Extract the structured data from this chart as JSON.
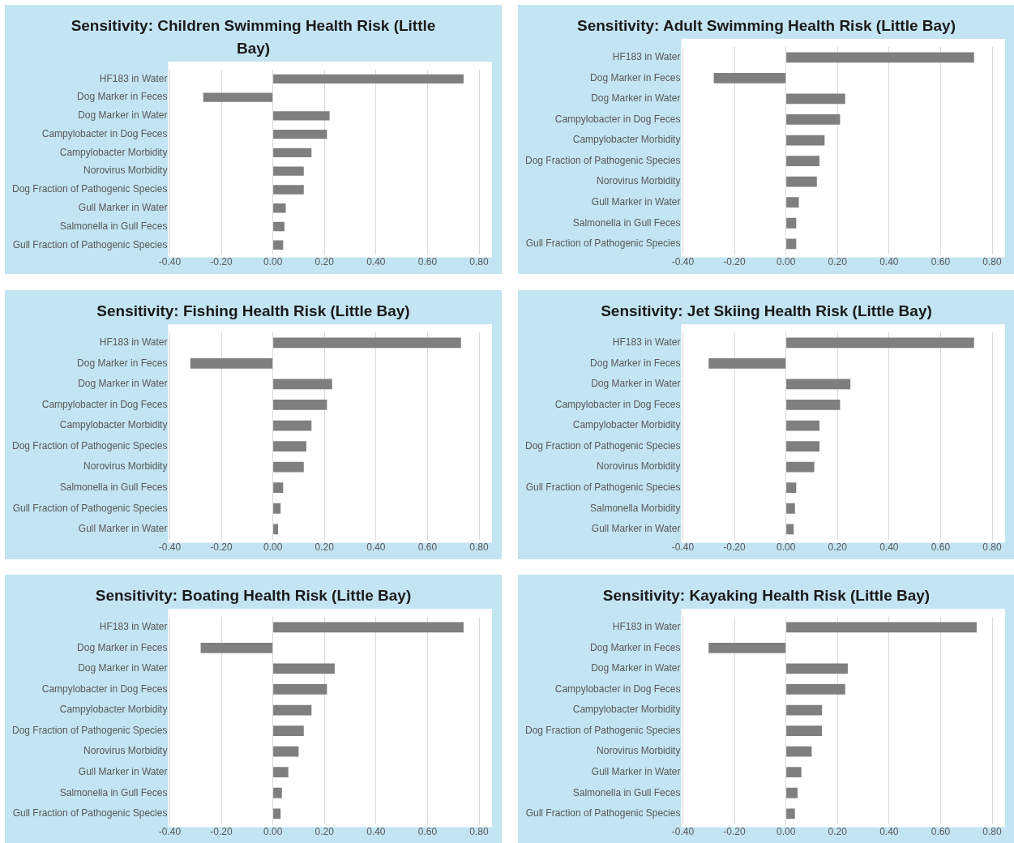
{
  "chart_data": [
    {
      "type": "bar",
      "orientation": "horizontal",
      "title": "Sensitivity: Children Swimming Health Risk (Little Bay)",
      "categories": [
        "HF183 in Water",
        "Dog Marker in Feces",
        "Dog Marker in Water",
        "Campylobacter in Dog Feces",
        "Campylobacter Morbidity",
        "Norovirus Morbidity",
        "Dog Fraction of Pathogenic Species",
        "Gull Marker in Water",
        "Salmonella in Gull Feces",
        "Gull Fraction of Pathogenic Species"
      ],
      "values": [
        0.74,
        -0.27,
        0.22,
        0.21,
        0.15,
        0.12,
        0.12,
        0.05,
        0.045,
        0.04
      ],
      "color": "#7f7f7f",
      "xlim": [
        -0.4,
        0.8
      ],
      "xticks": [
        {
          "value": -0.4,
          "label": "-0.40"
        },
        {
          "value": -0.2,
          "label": "-0.20"
        },
        {
          "value": 0,
          "label": "0.00"
        },
        {
          "value": 0.2,
          "label": "0.20"
        },
        {
          "value": 0.4,
          "label": "0.40"
        },
        {
          "value": 0.6,
          "label": "0.60"
        },
        {
          "value": 0.8,
          "label": "0.80"
        }
      ],
      "grid": "x"
    },
    {
      "type": "bar",
      "orientation": "horizontal",
      "title": "Sensitivity: Adult Swimming Health Risk (Little Bay)",
      "categories": [
        "HF183 in Water",
        "Dog Marker in Feces",
        "Dog Marker in Water",
        "Campylobacter in Dog Feces",
        "Campylobacter Morbidity",
        "Dog Fraction of Pathogenic Species",
        "Norovirus Morbidity",
        "Gull Marker in Water",
        "Salmonella in Gull Feces",
        "Gull Fraction of Pathogenic Species"
      ],
      "values": [
        0.73,
        -0.28,
        0.23,
        0.21,
        0.15,
        0.13,
        0.12,
        0.05,
        0.04,
        0.04
      ],
      "color": "#7f7f7f",
      "xlim": [
        -0.4,
        0.8
      ],
      "xticks": [
        {
          "value": -0.4,
          "label": "-0.40"
        },
        {
          "value": -0.2,
          "label": "-0.20"
        },
        {
          "value": 0,
          "label": "0.00"
        },
        {
          "value": 0.2,
          "label": "0.20"
        },
        {
          "value": 0.4,
          "label": "0.40"
        },
        {
          "value": 0.6,
          "label": "0.60"
        },
        {
          "value": 0.8,
          "label": "0.80"
        }
      ],
      "grid": "x"
    },
    {
      "type": "bar",
      "orientation": "horizontal",
      "title": "Sensitivity: Fishing Health Risk (Little Bay)",
      "categories": [
        "HF183 in Water",
        "Dog Marker in Feces",
        "Dog Marker in Water",
        "Campylobacter in Dog Feces",
        "Campylobacter Morbidity",
        "Dog Fraction of Pathogenic Species",
        "Norovirus Morbidity",
        "Salmonella in Gull Feces",
        "Gull Fraction of Pathogenic Species",
        "Gull Marker in Water"
      ],
      "values": [
        0.73,
        -0.32,
        0.23,
        0.21,
        0.15,
        0.13,
        0.12,
        0.04,
        0.03,
        0.02
      ],
      "color": "#7f7f7f",
      "xlim": [
        -0.4,
        0.8
      ],
      "xticks": [
        {
          "value": -0.4,
          "label": "-0.40"
        },
        {
          "value": -0.2,
          "label": "-0.20"
        },
        {
          "value": 0,
          "label": "0.00"
        },
        {
          "value": 0.2,
          "label": "0.20"
        },
        {
          "value": 0.4,
          "label": "0.40"
        },
        {
          "value": 0.6,
          "label": "0.60"
        },
        {
          "value": 0.8,
          "label": "0.80"
        }
      ],
      "grid": "x"
    },
    {
      "type": "bar",
      "orientation": "horizontal",
      "title": "Sensitivity: Jet Skiing Health Risk (Little Bay)",
      "categories": [
        "HF183 in Water",
        "Dog Marker in Feces",
        "Dog Marker in Water",
        "Campylobacter in Dog Feces",
        "Campylobacter Morbidity",
        "Dog Fraction of Pathogenic Species",
        "Norovirus Morbidity",
        "Gull Fraction of Pathogenic Species",
        "Salmonella Morbidity",
        "Gull Marker in Water"
      ],
      "values": [
        0.73,
        -0.3,
        0.25,
        0.21,
        0.13,
        0.13,
        0.11,
        0.04,
        0.035,
        0.03
      ],
      "color": "#7f7f7f",
      "xlim": [
        -0.4,
        0.8
      ],
      "xticks": [
        {
          "value": -0.4,
          "label": "-0.40"
        },
        {
          "value": -0.2,
          "label": "-0.20"
        },
        {
          "value": 0,
          "label": "0.00"
        },
        {
          "value": 0.2,
          "label": "0.20"
        },
        {
          "value": 0.4,
          "label": "0.40"
        },
        {
          "value": 0.6,
          "label": "0.60"
        },
        {
          "value": 0.8,
          "label": "0.80"
        }
      ],
      "grid": "x"
    },
    {
      "type": "bar",
      "orientation": "horizontal",
      "title": "Sensitivity: Boating Health Risk (Little Bay)",
      "categories": [
        "HF183 in Water",
        "Dog Marker in Feces",
        "Dog Marker in Water",
        "Campylobacter in Dog Feces",
        "Campylobacter Morbidity",
        "Dog Fraction of Pathogenic Species",
        "Norovirus Morbidity",
        "Gull Marker in Water",
        "Salmonella in Gull Feces",
        "Gull Fraction of Pathogenic Species"
      ],
      "values": [
        0.74,
        -0.28,
        0.24,
        0.21,
        0.15,
        0.12,
        0.1,
        0.06,
        0.035,
        0.03
      ],
      "color": "#7f7f7f",
      "xlim": [
        -0.4,
        0.8
      ],
      "xticks": [
        {
          "value": -0.4,
          "label": "-0.40"
        },
        {
          "value": -0.2,
          "label": "-0.20"
        },
        {
          "value": 0,
          "label": "0.00"
        },
        {
          "value": 0.2,
          "label": "0.20"
        },
        {
          "value": 0.4,
          "label": "0.40"
        },
        {
          "value": 0.6,
          "label": "0.60"
        },
        {
          "value": 0.8,
          "label": "0.80"
        }
      ],
      "grid": "x"
    },
    {
      "type": "bar",
      "orientation": "horizontal",
      "title": "Sensitivity: Kayaking Health Risk (Little Bay)",
      "categories": [
        "HF183 in Water",
        "Dog Marker in Feces",
        "Dog Marker in Water",
        "Campylobacter in Dog Feces",
        "Campylobacter Morbidity",
        "Dog Fraction of Pathogenic Species",
        "Norovirus Morbidity",
        "Gull Marker in Water",
        "Salmonella in Gull Feces",
        "Gull Fraction of Pathogenic Species"
      ],
      "values": [
        0.74,
        -0.3,
        0.24,
        0.23,
        0.14,
        0.14,
        0.1,
        0.06,
        0.045,
        0.035
      ],
      "color": "#7f7f7f",
      "xlim": [
        -0.4,
        0.8
      ],
      "xticks": [
        {
          "value": -0.4,
          "label": "-0.40"
        },
        {
          "value": -0.2,
          "label": "-0.20"
        },
        {
          "value": 0,
          "label": "0.00"
        },
        {
          "value": 0.2,
          "label": "0.20"
        },
        {
          "value": 0.4,
          "label": "0.40"
        },
        {
          "value": 0.6,
          "label": "0.60"
        },
        {
          "value": 0.8,
          "label": "0.80"
        }
      ],
      "grid": "x"
    }
  ]
}
